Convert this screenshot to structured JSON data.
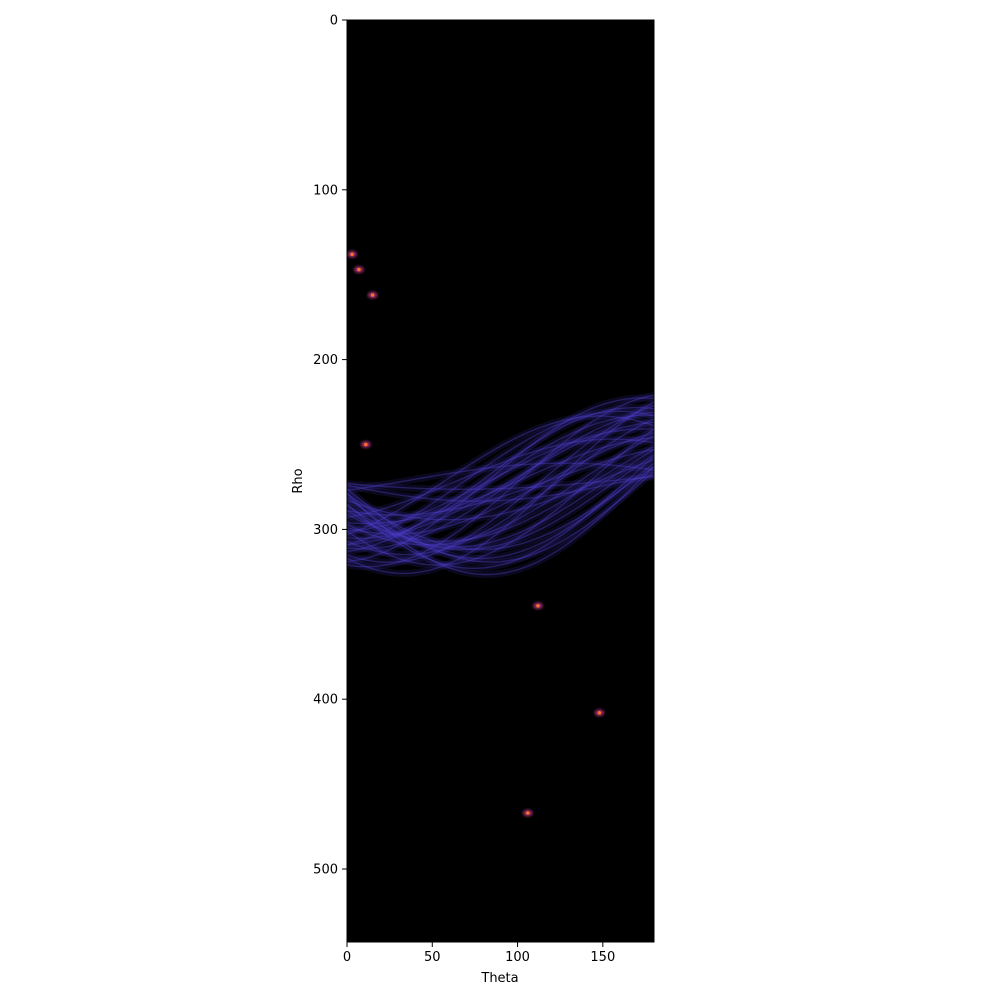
{
  "chart_data": {
    "type": "heatmap",
    "title": "",
    "xlabel": "Theta",
    "ylabel": "Rho",
    "xlim": [
      0,
      180
    ],
    "ylim": [
      543,
      0
    ],
    "x_ticks": [
      0,
      50,
      100,
      150
    ],
    "y_ticks": [
      0,
      100,
      200,
      300,
      400,
      500
    ],
    "colormap": "CMRmap",
    "background_color": "#000000",
    "curve_color": "#3c2fb0",
    "highlight_color": "#ff6a30",
    "grid": false,
    "legend": "none",
    "hough_points": [
      [
        38,
        -3
      ],
      [
        38,
        -14
      ],
      [
        34,
        4
      ],
      [
        30,
        -3
      ],
      [
        40,
        6
      ],
      [
        20,
        30
      ],
      [
        18,
        35
      ],
      [
        10,
        45
      ],
      [
        8,
        40
      ],
      [
        5,
        48
      ],
      [
        2,
        5
      ],
      [
        3,
        12
      ],
      [
        6,
        -8
      ],
      [
        48,
        -6
      ],
      [
        12,
        20
      ],
      [
        22,
        -10
      ],
      [
        28,
        15
      ],
      [
        36,
        25
      ],
      [
        44,
        20
      ],
      [
        50,
        10
      ],
      [
        15,
        38
      ],
      [
        25,
        5
      ],
      [
        32,
        -20
      ],
      [
        42,
        -8
      ],
      [
        46,
        30
      ],
      [
        30,
        40
      ],
      [
        14,
        50
      ],
      [
        8,
        55
      ],
      [
        18,
        10
      ],
      [
        26,
        28
      ]
    ],
    "peaks": [
      {
        "theta": 3,
        "rho": 138
      },
      {
        "theta": 7,
        "rho": 147
      },
      {
        "theta": 15,
        "rho": 162
      },
      {
        "theta": 11,
        "rho": 250
      },
      {
        "theta": 112,
        "rho": 345
      },
      {
        "theta": 148,
        "rho": 408
      },
      {
        "theta": 106,
        "rho": 467
      }
    ]
  }
}
